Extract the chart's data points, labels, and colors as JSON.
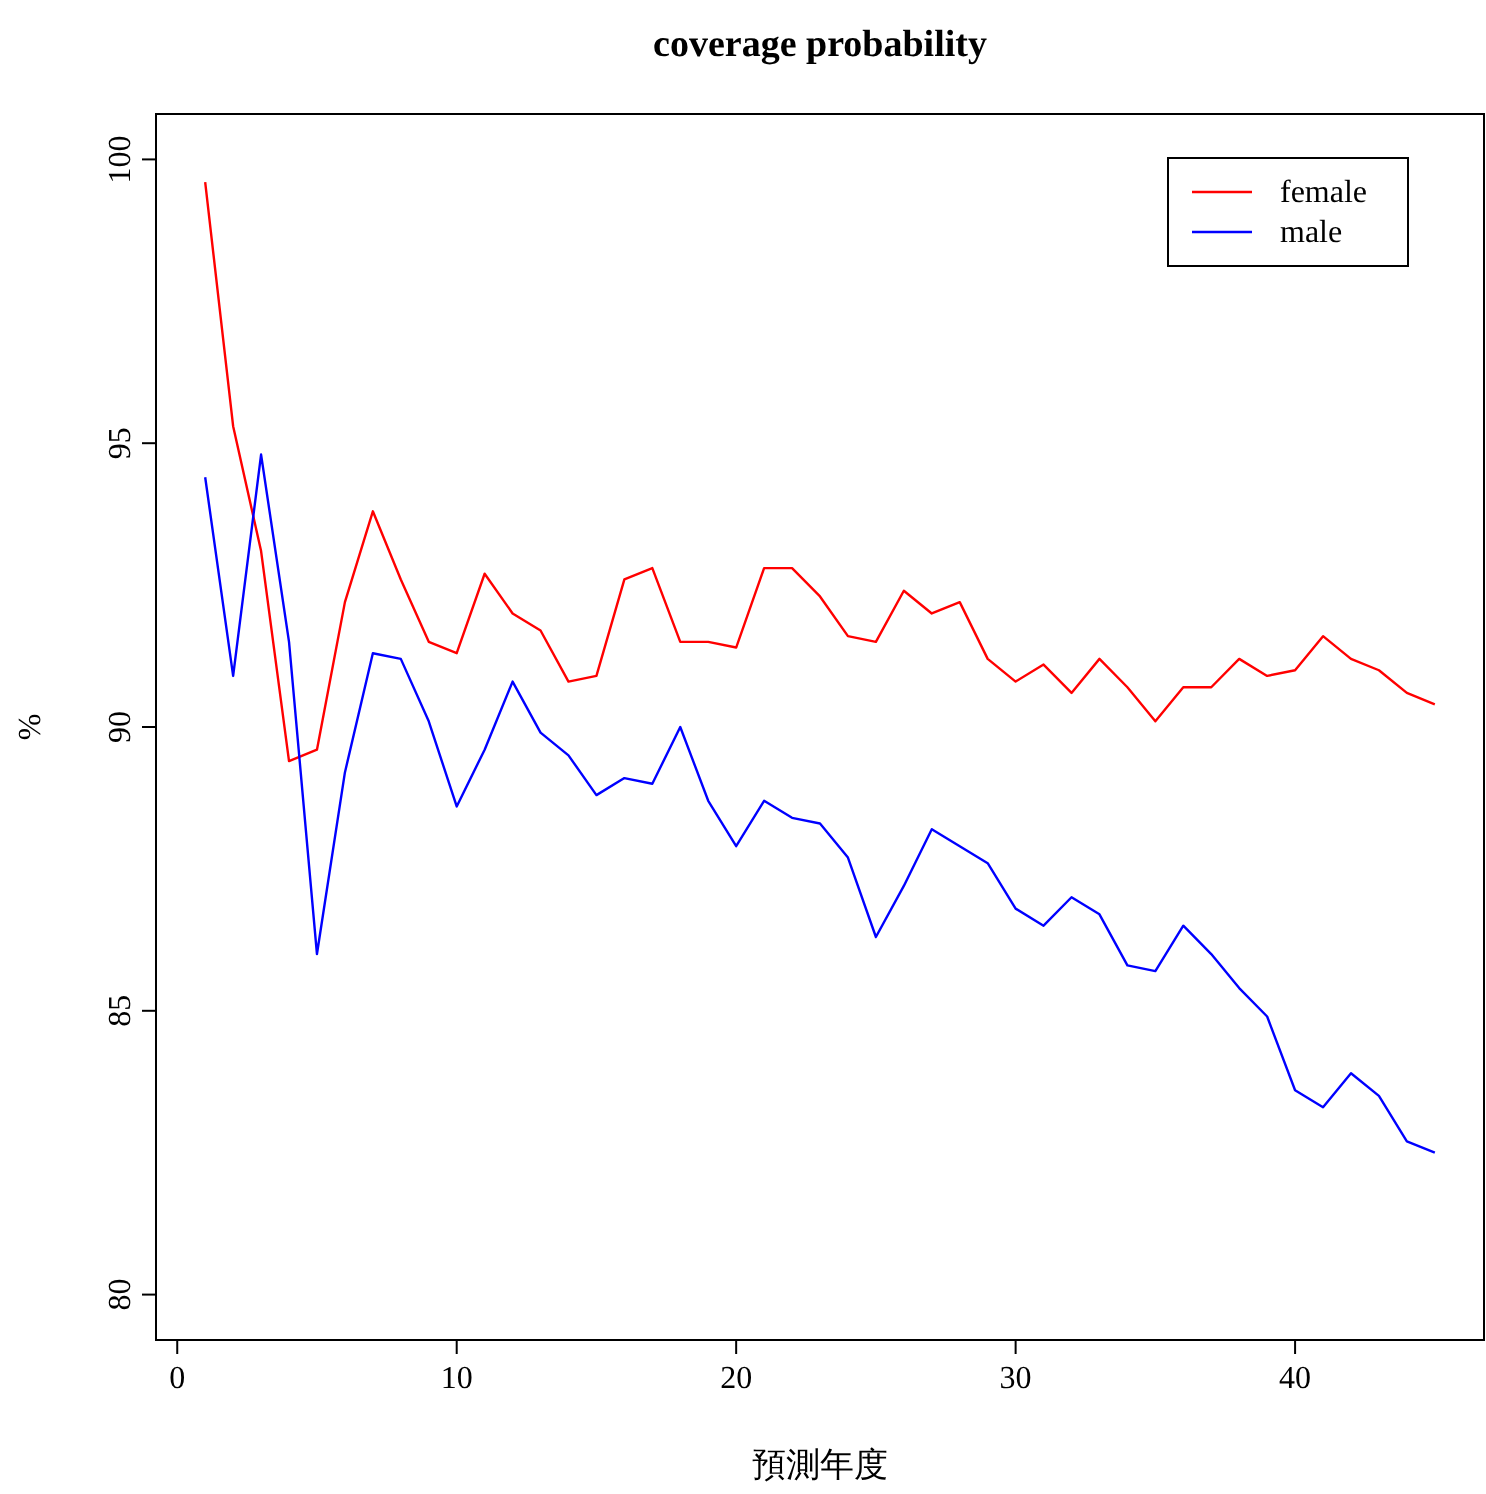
{
  "chart_data": {
    "type": "line",
    "title": "coverage probability",
    "xlabel": "預測年度",
    "ylabel": "%",
    "x": [
      1,
      2,
      3,
      4,
      5,
      6,
      7,
      8,
      9,
      10,
      11,
      12,
      13,
      14,
      15,
      16,
      17,
      18,
      19,
      20,
      21,
      22,
      23,
      24,
      25,
      26,
      27,
      28,
      29,
      30,
      31,
      32,
      33,
      34,
      35,
      36,
      37,
      38,
      39,
      40,
      41,
      42,
      43,
      44,
      45
    ],
    "series": [
      {
        "name": "female",
        "color": "#ff0000",
        "values": [
          99.6,
          95.3,
          93.1,
          89.4,
          89.6,
          92.2,
          93.8,
          92.6,
          91.5,
          91.3,
          92.7,
          92.0,
          91.7,
          90.8,
          90.9,
          92.6,
          92.8,
          91.5,
          91.5,
          91.4,
          92.8,
          92.8,
          92.3,
          91.6,
          91.5,
          92.4,
          92.0,
          92.2,
          91.2,
          90.8,
          91.1,
          90.6,
          91.2,
          90.7,
          90.1,
          90.7,
          90.7,
          91.2,
          90.9,
          91.0,
          91.6,
          91.2,
          91.0,
          90.6,
          90.4
        ]
      },
      {
        "name": "male",
        "color": "#0000ff",
        "values": [
          94.4,
          90.9,
          94.8,
          91.5,
          86.0,
          89.2,
          91.3,
          91.2,
          90.1,
          88.6,
          89.6,
          90.8,
          89.9,
          89.5,
          88.8,
          89.1,
          89.0,
          90.0,
          88.7,
          87.9,
          88.7,
          88.4,
          88.3,
          87.7,
          86.3,
          87.2,
          88.2,
          87.9,
          87.6,
          86.8,
          86.5,
          87.0,
          86.7,
          85.8,
          85.7,
          86.5,
          86.0,
          85.4,
          84.9,
          83.6,
          83.3,
          83.9,
          83.5,
          82.7,
          82.5
        ]
      }
    ],
    "xlim": [
      -0.76,
      46.76
    ],
    "ylim": [
      79.2,
      100.8
    ],
    "xticks": [
      0,
      10,
      20,
      30,
      40
    ],
    "yticks": [
      80,
      85,
      90,
      95,
      100
    ],
    "legend": "top right",
    "grid": false
  }
}
